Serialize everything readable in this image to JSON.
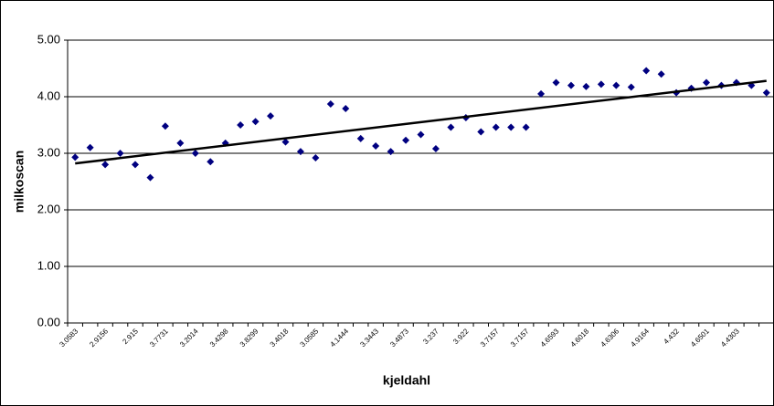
{
  "chart_data": {
    "type": "line-markers",
    "x_label": "kjeldahl",
    "y_label": "milkoscan",
    "categories": [
      "3.0583",
      null,
      "2.9156",
      null,
      "2.915",
      null,
      "3.7731",
      null,
      "3.2014",
      null,
      "3.4298",
      null,
      "3.8299",
      null,
      "3.4018",
      null,
      "3.0585",
      null,
      "4.1444",
      null,
      "3.3443",
      null,
      "3.4873",
      null,
      "3.237",
      null,
      "3.922",
      null,
      "3.7157",
      null,
      "3.7157",
      null,
      "4.6593",
      null,
      "4.6018",
      null,
      "4.6306",
      null,
      "4.9164",
      null,
      "4.432",
      null,
      "4.6501",
      null,
      "4.4303",
      null,
      null
    ],
    "values": [
      2.93,
      3.1,
      2.8,
      3.0,
      2.8,
      2.57,
      3.48,
      3.18,
      3.0,
      2.85,
      3.18,
      3.5,
      3.56,
      3.66,
      3.2,
      3.03,
      2.92,
      3.87,
      3.79,
      3.26,
      3.13,
      3.03,
      3.23,
      3.33,
      3.08,
      3.46,
      3.63,
      3.38,
      3.46,
      3.46,
      3.46,
      4.05,
      4.25,
      4.2,
      4.18,
      4.22,
      4.2,
      4.17,
      4.46,
      4.4,
      4.07,
      4.15,
      4.25,
      4.2,
      4.25,
      4.2,
      4.07
    ],
    "color": "#000080",
    "trendline": {
      "values": [
        2.82,
        4.28
      ],
      "color": "#000000"
    },
    "ylim": [
      0,
      5
    ],
    "yticks": [
      {
        "value": 0,
        "label": "0.00"
      },
      {
        "value": 1,
        "label": "1.00"
      },
      {
        "value": 2,
        "label": "2.00"
      },
      {
        "value": 3,
        "label": "3.00"
      },
      {
        "value": 4,
        "label": "4.00"
      },
      {
        "value": 5,
        "label": "5.00"
      }
    ],
    "grid": true
  }
}
